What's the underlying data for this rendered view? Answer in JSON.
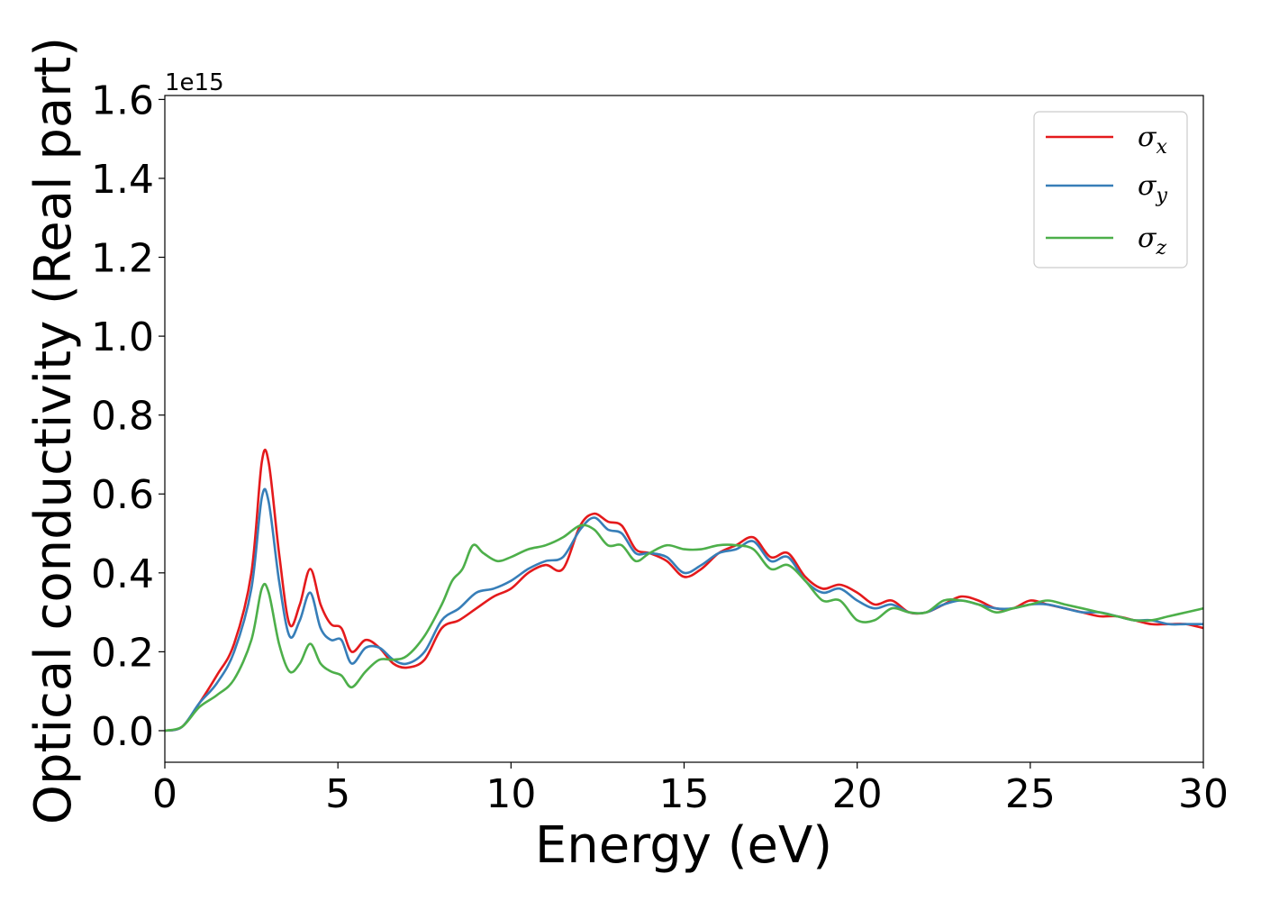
{
  "chart_data": {
    "type": "line",
    "xlabel": "Energy (eV)",
    "ylabel": "Optical conductivity (Real part)",
    "y_offset_label": "1e15",
    "xlim": [
      0,
      30
    ],
    "ylim": [
      -0.08,
      1.61
    ],
    "x_ticks": [
      0,
      5,
      10,
      15,
      20,
      25,
      30
    ],
    "y_ticks": [
      0.0,
      0.2,
      0.4,
      0.6,
      0.8,
      1.0,
      1.2,
      1.4,
      1.6
    ],
    "x_tick_labels": [
      "0",
      "5",
      "10",
      "15",
      "20",
      "25",
      "30"
    ],
    "y_tick_labels": [
      "0.0",
      "0.2",
      "0.4",
      "0.6",
      "0.8",
      "1.0",
      "1.2",
      "1.4",
      "1.6"
    ],
    "grid": false,
    "legend_position": "top-right",
    "series": [
      {
        "name": "σx",
        "legend_base": "σ",
        "legend_sub": "x",
        "color": "#e41a1c",
        "points": [
          [
            0,
            0
          ],
          [
            0.5,
            0.01
          ],
          [
            1,
            0.07
          ],
          [
            1.5,
            0.14
          ],
          [
            2,
            0.22
          ],
          [
            2.5,
            0.4
          ],
          [
            2.8,
            0.68
          ],
          [
            3,
            0.68
          ],
          [
            3.3,
            0.45
          ],
          [
            3.6,
            0.27
          ],
          [
            3.9,
            0.32
          ],
          [
            4.2,
            0.41
          ],
          [
            4.5,
            0.32
          ],
          [
            4.8,
            0.27
          ],
          [
            5.1,
            0.26
          ],
          [
            5.4,
            0.2
          ],
          [
            5.8,
            0.23
          ],
          [
            6.2,
            0.21
          ],
          [
            6.6,
            0.17
          ],
          [
            7,
            0.16
          ],
          [
            7.5,
            0.18
          ],
          [
            8,
            0.26
          ],
          [
            8.5,
            0.28
          ],
          [
            9,
            0.31
          ],
          [
            9.5,
            0.34
          ],
          [
            10,
            0.36
          ],
          [
            10.5,
            0.4
          ],
          [
            11,
            0.42
          ],
          [
            11.5,
            0.41
          ],
          [
            12,
            0.52
          ],
          [
            12.4,
            0.55
          ],
          [
            12.8,
            0.53
          ],
          [
            13.2,
            0.52
          ],
          [
            13.6,
            0.46
          ],
          [
            14,
            0.45
          ],
          [
            14.5,
            0.43
          ],
          [
            15,
            0.39
          ],
          [
            15.5,
            0.41
          ],
          [
            16,
            0.45
          ],
          [
            16.5,
            0.47
          ],
          [
            17,
            0.49
          ],
          [
            17.5,
            0.44
          ],
          [
            18,
            0.45
          ],
          [
            18.5,
            0.39
          ],
          [
            19,
            0.36
          ],
          [
            19.5,
            0.37
          ],
          [
            20,
            0.35
          ],
          [
            20.5,
            0.32
          ],
          [
            21,
            0.33
          ],
          [
            21.5,
            0.3
          ],
          [
            22,
            0.3
          ],
          [
            22.5,
            0.32
          ],
          [
            23,
            0.34
          ],
          [
            23.5,
            0.33
          ],
          [
            24,
            0.31
          ],
          [
            24.5,
            0.31
          ],
          [
            25,
            0.33
          ],
          [
            25.5,
            0.32
          ],
          [
            26,
            0.31
          ],
          [
            26.5,
            0.3
          ],
          [
            27,
            0.29
          ],
          [
            27.5,
            0.29
          ],
          [
            28,
            0.28
          ],
          [
            28.5,
            0.27
          ],
          [
            29,
            0.27
          ],
          [
            29.5,
            0.27
          ],
          [
            30,
            0.26
          ]
        ]
      },
      {
        "name": "σy",
        "legend_base": "σ",
        "legend_sub": "y",
        "color": "#377eb8",
        "points": [
          [
            0,
            0
          ],
          [
            0.5,
            0.01
          ],
          [
            1,
            0.07
          ],
          [
            1.5,
            0.12
          ],
          [
            2,
            0.2
          ],
          [
            2.5,
            0.36
          ],
          [
            2.8,
            0.59
          ],
          [
            3,
            0.58
          ],
          [
            3.3,
            0.38
          ],
          [
            3.6,
            0.24
          ],
          [
            3.9,
            0.28
          ],
          [
            4.2,
            0.35
          ],
          [
            4.5,
            0.26
          ],
          [
            4.8,
            0.23
          ],
          [
            5.1,
            0.23
          ],
          [
            5.4,
            0.17
          ],
          [
            5.8,
            0.21
          ],
          [
            6.2,
            0.21
          ],
          [
            6.6,
            0.18
          ],
          [
            7,
            0.17
          ],
          [
            7.5,
            0.2
          ],
          [
            8,
            0.28
          ],
          [
            8.5,
            0.31
          ],
          [
            9,
            0.35
          ],
          [
            9.5,
            0.36
          ],
          [
            10,
            0.38
          ],
          [
            10.5,
            0.41
          ],
          [
            11,
            0.43
          ],
          [
            11.5,
            0.44
          ],
          [
            12,
            0.51
          ],
          [
            12.4,
            0.54
          ],
          [
            12.8,
            0.51
          ],
          [
            13.2,
            0.5
          ],
          [
            13.6,
            0.45
          ],
          [
            14,
            0.45
          ],
          [
            14.5,
            0.44
          ],
          [
            15,
            0.4
          ],
          [
            15.5,
            0.42
          ],
          [
            16,
            0.45
          ],
          [
            16.5,
            0.46
          ],
          [
            17,
            0.48
          ],
          [
            17.5,
            0.43
          ],
          [
            18,
            0.44
          ],
          [
            18.5,
            0.38
          ],
          [
            19,
            0.35
          ],
          [
            19.5,
            0.36
          ],
          [
            20,
            0.33
          ],
          [
            20.5,
            0.31
          ],
          [
            21,
            0.32
          ],
          [
            21.5,
            0.3
          ],
          [
            22,
            0.3
          ],
          [
            22.5,
            0.32
          ],
          [
            23,
            0.33
          ],
          [
            23.5,
            0.32
          ],
          [
            24,
            0.31
          ],
          [
            24.5,
            0.31
          ],
          [
            25,
            0.32
          ],
          [
            25.5,
            0.32
          ],
          [
            26,
            0.31
          ],
          [
            26.5,
            0.3
          ],
          [
            27,
            0.3
          ],
          [
            27.5,
            0.29
          ],
          [
            28,
            0.28
          ],
          [
            28.5,
            0.28
          ],
          [
            29,
            0.27
          ],
          [
            29.5,
            0.27
          ],
          [
            30,
            0.27
          ]
        ]
      },
      {
        "name": "σz",
        "legend_base": "σ",
        "legend_sub": "z",
        "color": "#4daf4a",
        "points": [
          [
            0,
            0
          ],
          [
            0.5,
            0.01
          ],
          [
            1,
            0.06
          ],
          [
            1.5,
            0.09
          ],
          [
            2,
            0.13
          ],
          [
            2.5,
            0.23
          ],
          [
            2.8,
            0.36
          ],
          [
            3,
            0.35
          ],
          [
            3.3,
            0.22
          ],
          [
            3.6,
            0.15
          ],
          [
            3.9,
            0.17
          ],
          [
            4.2,
            0.22
          ],
          [
            4.5,
            0.17
          ],
          [
            4.8,
            0.15
          ],
          [
            5.1,
            0.14
          ],
          [
            5.4,
            0.11
          ],
          [
            5.8,
            0.15
          ],
          [
            6.2,
            0.18
          ],
          [
            6.6,
            0.18
          ],
          [
            7,
            0.19
          ],
          [
            7.5,
            0.24
          ],
          [
            8,
            0.32
          ],
          [
            8.3,
            0.38
          ],
          [
            8.6,
            0.41
          ],
          [
            8.9,
            0.47
          ],
          [
            9.2,
            0.45
          ],
          [
            9.6,
            0.43
          ],
          [
            10,
            0.44
          ],
          [
            10.5,
            0.46
          ],
          [
            11,
            0.47
          ],
          [
            11.5,
            0.49
          ],
          [
            12,
            0.52
          ],
          [
            12.4,
            0.51
          ],
          [
            12.8,
            0.47
          ],
          [
            13.2,
            0.47
          ],
          [
            13.6,
            0.43
          ],
          [
            14,
            0.45
          ],
          [
            14.5,
            0.47
          ],
          [
            15,
            0.46
          ],
          [
            15.5,
            0.46
          ],
          [
            16,
            0.47
          ],
          [
            16.5,
            0.47
          ],
          [
            17,
            0.46
          ],
          [
            17.5,
            0.41
          ],
          [
            18,
            0.42
          ],
          [
            18.5,
            0.38
          ],
          [
            19,
            0.33
          ],
          [
            19.5,
            0.33
          ],
          [
            20,
            0.28
          ],
          [
            20.5,
            0.28
          ],
          [
            21,
            0.31
          ],
          [
            21.5,
            0.3
          ],
          [
            22,
            0.3
          ],
          [
            22.5,
            0.33
          ],
          [
            23,
            0.33
          ],
          [
            23.5,
            0.32
          ],
          [
            24,
            0.3
          ],
          [
            24.5,
            0.31
          ],
          [
            25,
            0.32
          ],
          [
            25.5,
            0.33
          ],
          [
            26,
            0.32
          ],
          [
            26.5,
            0.31
          ],
          [
            27,
            0.3
          ],
          [
            27.5,
            0.29
          ],
          [
            28,
            0.28
          ],
          [
            28.5,
            0.28
          ],
          [
            29,
            0.29
          ],
          [
            29.5,
            0.3
          ],
          [
            30,
            0.31
          ]
        ]
      }
    ]
  }
}
